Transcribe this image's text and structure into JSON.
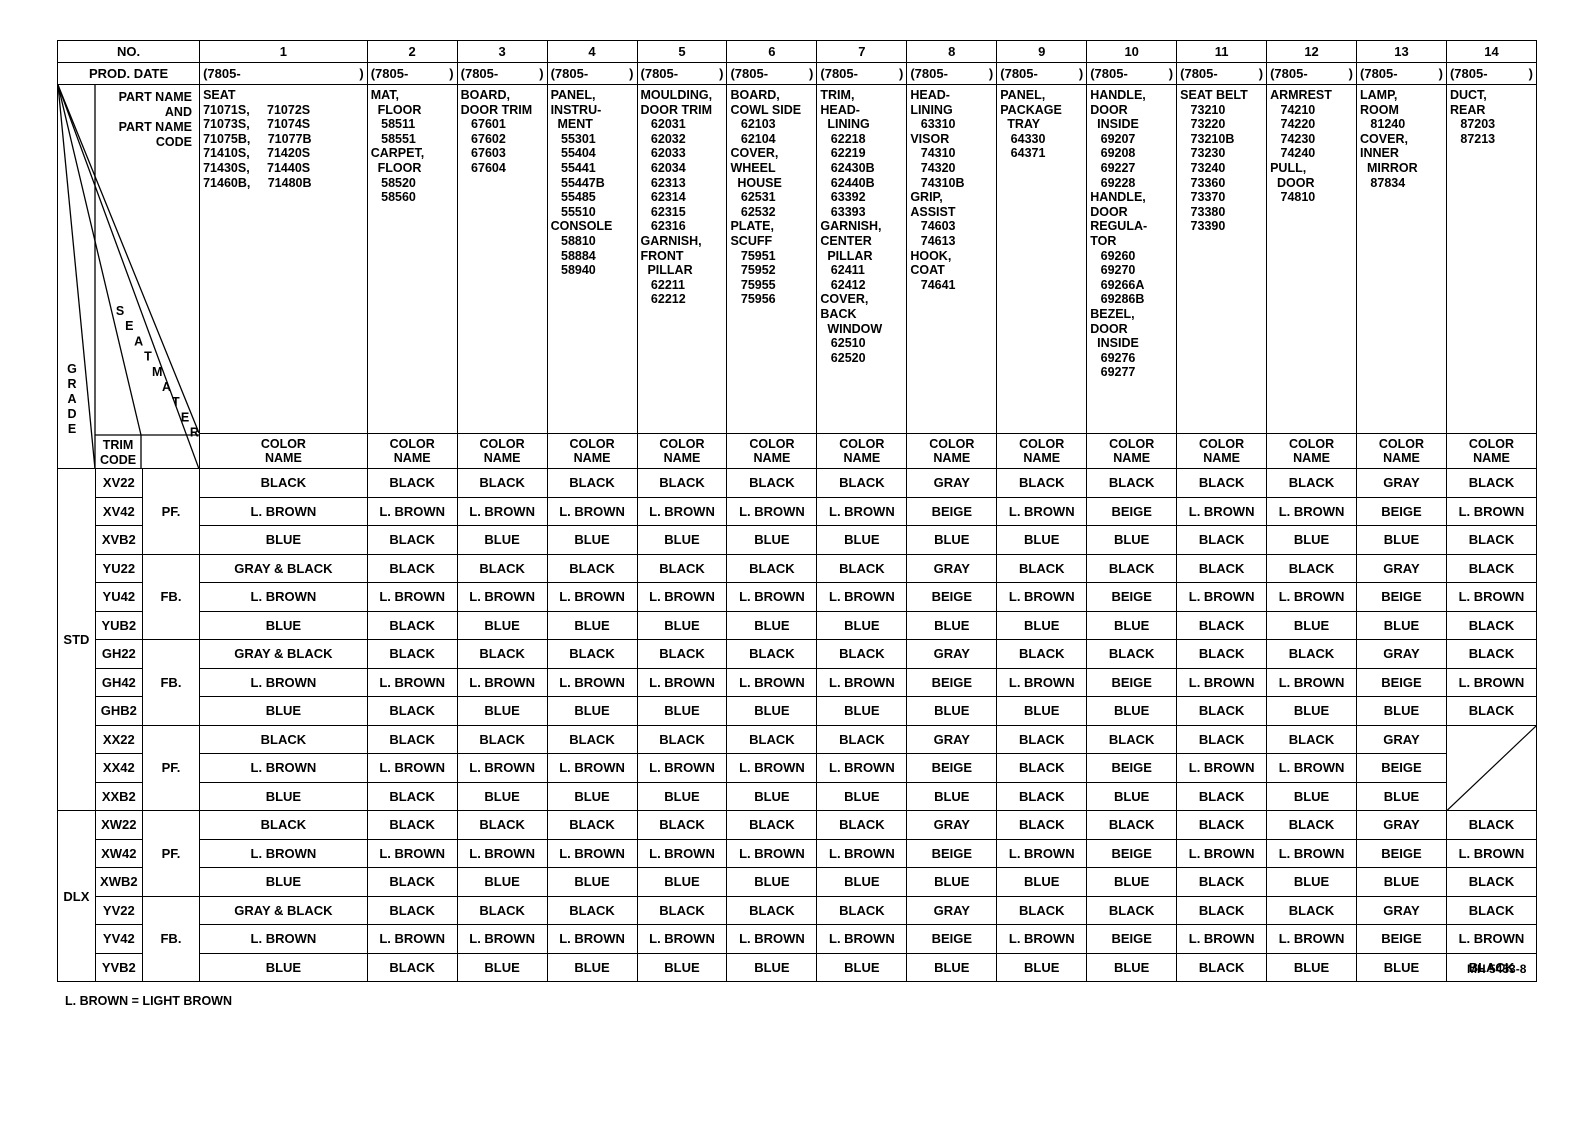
{
  "header": {
    "no_label": "NO.",
    "prod_date_label": "PROD. DATE",
    "part_name_lines": [
      "PART NAME",
      "AND",
      "PART NAME",
      "CODE"
    ],
    "grade_label": "GRADE",
    "trim_code_label": "TRIM\nCODE",
    "seat_material_label": "SEAT MATERIAL",
    "color_name_label": "COLOR\nNAME"
  },
  "columns": [
    {
      "no": "1",
      "prod_date": "(7805-",
      "part_lines": [
        "SEAT",
        "71071S,     71072S",
        "71073S,     71074S",
        "71075B,     71077B",
        "71410S,     71420S",
        "71430S,     71440S",
        "71460B,     71480B"
      ]
    },
    {
      "no": "2",
      "prod_date": "(7805-",
      "part_lines": [
        "MAT,",
        "  FLOOR",
        "   58511",
        "   58551",
        "",
        "CARPET,",
        "  FLOOR",
        "   58520",
        "   58560"
      ]
    },
    {
      "no": "3",
      "prod_date": "(7805-",
      "part_lines": [
        "BOARD,",
        "DOOR TRIM",
        "   67601",
        "   67602",
        "   67603",
        "   67604"
      ]
    },
    {
      "no": "4",
      "prod_date": "(7805-",
      "part_lines": [
        "PANEL,",
        "INSTRU-",
        "  MENT",
        "   55301",
        "   55404",
        "   55441",
        "   55447B",
        "   55485",
        "   55510",
        "",
        "CONSOLE",
        "   58810",
        "   58884",
        "   58940"
      ]
    },
    {
      "no": "5",
      "prod_date": "(7805-",
      "part_lines": [
        "MOULDING,",
        "DOOR TRIM",
        "   62031",
        "   62032",
        "   62033",
        "   62034",
        "   62313",
        "   62314",
        "   62315",
        "   62316",
        "",
        "GARNISH,",
        "FRONT",
        "  PILLAR",
        "   62211",
        "   62212"
      ]
    },
    {
      "no": "6",
      "prod_date": "(7805-",
      "part_lines": [
        "BOARD,",
        "COWL SIDE",
        "   62103",
        "   62104",
        "",
        "COVER,",
        "WHEEL",
        "  HOUSE",
        "   62531",
        "   62532",
        "",
        "PLATE,",
        "SCUFF",
        "   75951",
        "   75952",
        "   75955",
        "   75956"
      ]
    },
    {
      "no": "7",
      "prod_date": "(7805-",
      "part_lines": [
        "TRIM,",
        "HEAD-",
        "  LINING",
        "   62218",
        "   62219",
        "   62430B",
        "   62440B",
        "   63392",
        "   63393",
        "",
        "GARNISH,",
        "CENTER",
        "  PILLAR",
        "   62411",
        "   62412",
        "",
        "COVER,",
        "BACK",
        "  WINDOW",
        "   62510",
        "   62520"
      ]
    },
    {
      "no": "8",
      "prod_date": "(7805-",
      "part_lines": [
        "HEAD-",
        "LINING",
        "   63310",
        "",
        "VISOR",
        "   74310",
        "   74320",
        "   74310B",
        "",
        "GRIP,",
        "ASSIST",
        "   74603",
        "   74613",
        "",
        "HOOK,",
        "COAT",
        "   74641"
      ]
    },
    {
      "no": "9",
      "prod_date": "(7805-",
      "part_lines": [
        "PANEL,",
        "PACKAGE",
        "  TRAY",
        "   64330",
        "   64371"
      ]
    },
    {
      "no": "10",
      "prod_date": "(7805-",
      "part_lines": [
        "HANDLE,",
        "DOOR",
        "  INSIDE",
        "   69207",
        "   69208",
        "   69227",
        "   69228",
        "HANDLE,",
        "DOOR",
        "REGULA-",
        "TOR",
        "   69260",
        "   69270",
        "   69266A",
        "   69286B",
        "BEZEL,",
        "DOOR",
        "  INSIDE",
        "   69276",
        "   69277"
      ]
    },
    {
      "no": "11",
      "prod_date": "(7805-",
      "part_lines": [
        "SEAT BELT",
        "   73210",
        "   73220",
        "   73210B",
        "   73230",
        "   73240",
        "   73360",
        "   73370",
        "   73380",
        "   73390"
      ]
    },
    {
      "no": "12",
      "prod_date": "(7805-",
      "part_lines": [
        "ARMREST",
        "   74210",
        "   74220",
        "   74230",
        "   74240",
        "",
        "PULL,",
        "  DOOR",
        "   74810"
      ]
    },
    {
      "no": "13",
      "prod_date": "(7805-",
      "part_lines": [
        "LAMP,",
        "ROOM",
        "   81240",
        "",
        "COVER,",
        "INNER",
        "  MIRROR",
        "   87834"
      ]
    },
    {
      "no": "14",
      "prod_date": "(7805-",
      "part_lines": [
        "DUCT,",
        "REAR",
        "   87203",
        "   87213"
      ]
    }
  ],
  "rows": [
    {
      "grade": "STD",
      "trim": "XV22",
      "material": "PF.",
      "colors": [
        "BLACK",
        "BLACK",
        "BLACK",
        "BLACK",
        "BLACK",
        "BLACK",
        "BLACK",
        "GRAY",
        "BLACK",
        "BLACK",
        "BLACK",
        "BLACK",
        "GRAY",
        "BLACK"
      ]
    },
    {
      "grade": "STD",
      "trim": "XV42",
      "material": "PF.",
      "colors": [
        "L. BROWN",
        "L. BROWN",
        "L. BROWN",
        "L. BROWN",
        "L. BROWN",
        "L. BROWN",
        "L. BROWN",
        "BEIGE",
        "L. BROWN",
        "BEIGE",
        "L. BROWN",
        "L. BROWN",
        "BEIGE",
        "L. BROWN"
      ]
    },
    {
      "grade": "STD",
      "trim": "XVB2",
      "material": "PF.",
      "colors": [
        "BLUE",
        "BLACK",
        "BLUE",
        "BLUE",
        "BLUE",
        "BLUE",
        "BLUE",
        "BLUE",
        "BLUE",
        "BLUE",
        "BLACK",
        "BLUE",
        "BLUE",
        "BLACK"
      ]
    },
    {
      "grade": "STD",
      "trim": "YU22",
      "material": "FB.",
      "colors": [
        "GRAY & BLACK",
        "BLACK",
        "BLACK",
        "BLACK",
        "BLACK",
        "BLACK",
        "BLACK",
        "GRAY",
        "BLACK",
        "BLACK",
        "BLACK",
        "BLACK",
        "GRAY",
        "BLACK"
      ]
    },
    {
      "grade": "STD",
      "trim": "YU42",
      "material": "FB.",
      "colors": [
        "L. BROWN",
        "L. BROWN",
        "L. BROWN",
        "L. BROWN",
        "L. BROWN",
        "L. BROWN",
        "L. BROWN",
        "BEIGE",
        "L. BROWN",
        "BEIGE",
        "L. BROWN",
        "L. BROWN",
        "BEIGE",
        "L. BROWN"
      ]
    },
    {
      "grade": "STD",
      "trim": "YUB2",
      "material": "FB.",
      "colors": [
        "BLUE",
        "BLACK",
        "BLUE",
        "BLUE",
        "BLUE",
        "BLUE",
        "BLUE",
        "BLUE",
        "BLUE",
        "BLUE",
        "BLACK",
        "BLUE",
        "BLUE",
        "BLACK"
      ]
    },
    {
      "grade": "STD",
      "trim": "GH22",
      "material": "FB.",
      "colors": [
        "GRAY & BLACK",
        "BLACK",
        "BLACK",
        "BLACK",
        "BLACK",
        "BLACK",
        "BLACK",
        "GRAY",
        "BLACK",
        "BLACK",
        "BLACK",
        "BLACK",
        "GRAY",
        "BLACK"
      ]
    },
    {
      "grade": "STD",
      "trim": "GH42",
      "material": "FB.",
      "colors": [
        "L. BROWN",
        "L. BROWN",
        "L. BROWN",
        "L. BROWN",
        "L. BROWN",
        "L. BROWN",
        "L. BROWN",
        "BEIGE",
        "L. BROWN",
        "BEIGE",
        "L. BROWN",
        "L. BROWN",
        "BEIGE",
        "L. BROWN"
      ]
    },
    {
      "grade": "STD",
      "trim": "GHB2",
      "material": "FB.",
      "colors": [
        "BLUE",
        "BLACK",
        "BLUE",
        "BLUE",
        "BLUE",
        "BLUE",
        "BLUE",
        "BLUE",
        "BLUE",
        "BLUE",
        "BLACK",
        "BLUE",
        "BLUE",
        "BLACK"
      ]
    },
    {
      "grade": "STD",
      "trim": "XX22",
      "material": "PF.",
      "colors": [
        "BLACK",
        "BLACK",
        "BLACK",
        "BLACK",
        "BLACK",
        "BLACK",
        "BLACK",
        "GRAY",
        "BLACK",
        "BLACK",
        "BLACK",
        "BLACK",
        "GRAY",
        ""
      ]
    },
    {
      "grade": "STD",
      "trim": "XX42",
      "material": "PF.",
      "colors": [
        "L. BROWN",
        "L. BROWN",
        "L. BROWN",
        "L. BROWN",
        "L. BROWN",
        "L. BROWN",
        "L. BROWN",
        "BEIGE",
        "BLACK",
        "BEIGE",
        "L. BROWN",
        "L. BROWN",
        "BEIGE",
        ""
      ]
    },
    {
      "grade": "STD",
      "trim": "XXB2",
      "material": "PF.",
      "colors": [
        "BLUE",
        "BLACK",
        "BLUE",
        "BLUE",
        "BLUE",
        "BLUE",
        "BLUE",
        "BLUE",
        "BLACK",
        "BLUE",
        "BLACK",
        "BLUE",
        "BLUE",
        ""
      ]
    },
    {
      "grade": "DLX",
      "trim": "XW22",
      "material": "PF.",
      "colors": [
        "BLACK",
        "BLACK",
        "BLACK",
        "BLACK",
        "BLACK",
        "BLACK",
        "BLACK",
        "GRAY",
        "BLACK",
        "BLACK",
        "BLACK",
        "BLACK",
        "GRAY",
        "BLACK"
      ]
    },
    {
      "grade": "DLX",
      "trim": "XW42",
      "material": "PF.",
      "colors": [
        "L. BROWN",
        "L. BROWN",
        "L. BROWN",
        "L. BROWN",
        "L. BROWN",
        "L. BROWN",
        "L. BROWN",
        "BEIGE",
        "L. BROWN",
        "BEIGE",
        "L. BROWN",
        "L. BROWN",
        "BEIGE",
        "L. BROWN"
      ]
    },
    {
      "grade": "DLX",
      "trim": "XWB2",
      "material": "PF.",
      "colors": [
        "BLUE",
        "BLACK",
        "BLUE",
        "BLUE",
        "BLUE",
        "BLUE",
        "BLUE",
        "BLUE",
        "BLUE",
        "BLUE",
        "BLACK",
        "BLUE",
        "BLUE",
        "BLACK"
      ]
    },
    {
      "grade": "DLX",
      "trim": "YV22",
      "material": "FB.",
      "colors": [
        "GRAY & BLACK",
        "BLACK",
        "BLACK",
        "BLACK",
        "BLACK",
        "BLACK",
        "BLACK",
        "GRAY",
        "BLACK",
        "BLACK",
        "BLACK",
        "BLACK",
        "GRAY",
        "BLACK"
      ]
    },
    {
      "grade": "DLX",
      "trim": "YV42",
      "material": "FB.",
      "colors": [
        "L. BROWN",
        "L. BROWN",
        "L. BROWN",
        "L. BROWN",
        "L. BROWN",
        "L. BROWN",
        "L. BROWN",
        "BEIGE",
        "L. BROWN",
        "BEIGE",
        "L. BROWN",
        "L. BROWN",
        "BEIGE",
        "L. BROWN"
      ]
    },
    {
      "grade": "DLX",
      "trim": "YVB2",
      "material": "FB.",
      "colors": [
        "BLUE",
        "BLACK",
        "BLUE",
        "BLUE",
        "BLUE",
        "BLUE",
        "BLUE",
        "BLUE",
        "BLUE",
        "BLUE",
        "BLACK",
        "BLUE",
        "BLUE",
        "BLACK"
      ]
    }
  ],
  "footnote": "L. BROWN = LIGHT BROWN",
  "doc_ref": "MH 5453-8"
}
